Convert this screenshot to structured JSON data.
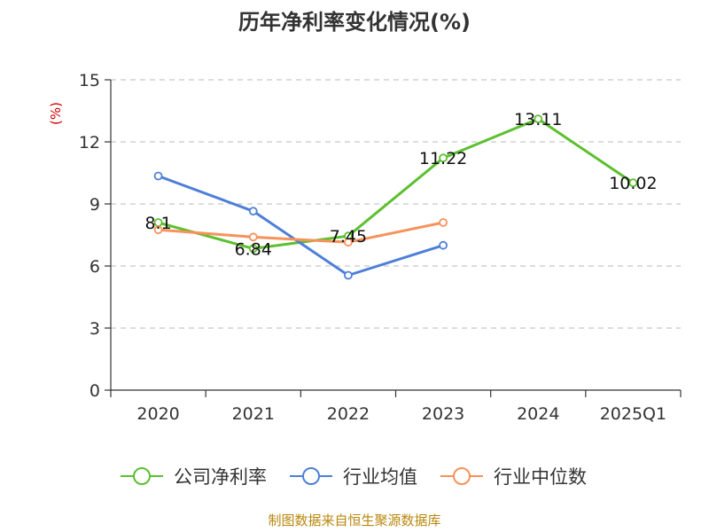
{
  "chart_data": {
    "type": "line",
    "title": "历年净利率变化情况(%)",
    "ylabel": "(%)",
    "xlabel": "",
    "categories": [
      "2020",
      "2021",
      "2022",
      "2023",
      "2024",
      "2025Q1"
    ],
    "ylim": [
      0,
      15
    ],
    "yticks": [
      0,
      3,
      6,
      9,
      12,
      15
    ],
    "grid": true,
    "legend_position": "bottom",
    "series": [
      {
        "name": "公司净利率",
        "color": "#5cc02f",
        "values": [
          8.1,
          6.84,
          7.45,
          11.22,
          13.11,
          10.02
        ],
        "labels": [
          "8.1",
          "6.84",
          "7.45",
          "11.22",
          "13.11",
          "10.02"
        ]
      },
      {
        "name": "行业均值",
        "color": "#4e7fd8",
        "values": [
          10.35,
          8.65,
          5.55,
          7.0,
          null,
          null
        ],
        "labels": []
      },
      {
        "name": "行业中位数",
        "color": "#f7925a",
        "values": [
          7.75,
          7.4,
          7.15,
          8.1,
          null,
          null
        ],
        "labels": []
      }
    ]
  },
  "source_text": "制图数据来自恒生聚源数据库"
}
